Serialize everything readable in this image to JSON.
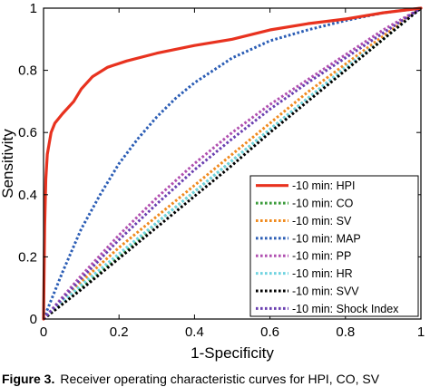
{
  "chart_data": {
    "type": "line",
    "title": "",
    "xlabel": "1-Specificity",
    "ylabel": "Sensitivity",
    "xlim": [
      0,
      1
    ],
    "ylim": [
      0,
      1
    ],
    "x_ticks": [
      "0",
      "0.2",
      "0.4",
      "0.6",
      "0.8",
      "1"
    ],
    "y_ticks": [
      "0",
      "0.2",
      "0.4",
      "0.6",
      "0.8",
      "1"
    ],
    "grid": false,
    "legend_position": "bottom-right",
    "series": [
      {
        "name": "-10 min: HPI",
        "color": "#e8321f",
        "style": "solid",
        "points": [
          [
            0,
            0
          ],
          [
            0.003,
            0.3
          ],
          [
            0.006,
            0.45
          ],
          [
            0.01,
            0.53
          ],
          [
            0.02,
            0.6
          ],
          [
            0.03,
            0.63
          ],
          [
            0.05,
            0.66
          ],
          [
            0.08,
            0.7
          ],
          [
            0.1,
            0.74
          ],
          [
            0.13,
            0.78
          ],
          [
            0.17,
            0.81
          ],
          [
            0.22,
            0.83
          ],
          [
            0.3,
            0.855
          ],
          [
            0.4,
            0.88
          ],
          [
            0.5,
            0.9
          ],
          [
            0.6,
            0.93
          ],
          [
            0.7,
            0.95
          ],
          [
            0.8,
            0.965
          ],
          [
            0.9,
            0.985
          ],
          [
            1,
            1
          ]
        ]
      },
      {
        "name": "-10 min: CO",
        "color": "#3a9b3a",
        "style": "dotted",
        "points": [
          [
            0,
            0
          ],
          [
            0.1,
            0.1
          ],
          [
            0.2,
            0.2
          ],
          [
            0.3,
            0.31
          ],
          [
            0.4,
            0.41
          ],
          [
            0.5,
            0.51
          ],
          [
            0.6,
            0.61
          ],
          [
            0.7,
            0.71
          ],
          [
            0.8,
            0.8
          ],
          [
            0.9,
            0.9
          ],
          [
            1,
            1
          ]
        ]
      },
      {
        "name": "-10 min: SV",
        "color": "#f08a1e",
        "style": "dotted",
        "points": [
          [
            0,
            0
          ],
          [
            0.05,
            0.06
          ],
          [
            0.1,
            0.12
          ],
          [
            0.2,
            0.23
          ],
          [
            0.3,
            0.33
          ],
          [
            0.4,
            0.43
          ],
          [
            0.5,
            0.53
          ],
          [
            0.6,
            0.63
          ],
          [
            0.7,
            0.73
          ],
          [
            0.8,
            0.82
          ],
          [
            0.9,
            0.91
          ],
          [
            1,
            1
          ]
        ]
      },
      {
        "name": "-10 min: MAP",
        "color": "#2b5db5",
        "style": "dotted",
        "points": [
          [
            0,
            0
          ],
          [
            0.02,
            0.06
          ],
          [
            0.05,
            0.15
          ],
          [
            0.1,
            0.29
          ],
          [
            0.15,
            0.4
          ],
          [
            0.2,
            0.5
          ],
          [
            0.25,
            0.58
          ],
          [
            0.3,
            0.65
          ],
          [
            0.35,
            0.71
          ],
          [
            0.4,
            0.76
          ],
          [
            0.45,
            0.8
          ],
          [
            0.5,
            0.84
          ],
          [
            0.6,
            0.895
          ],
          [
            0.7,
            0.93
          ],
          [
            0.8,
            0.96
          ],
          [
            0.9,
            0.985
          ],
          [
            1,
            1
          ]
        ]
      },
      {
        "name": "-10 min: PP",
        "color": "#b04fb0",
        "style": "dotted",
        "points": [
          [
            0,
            0
          ],
          [
            0.05,
            0.07
          ],
          [
            0.1,
            0.14
          ],
          [
            0.2,
            0.27
          ],
          [
            0.3,
            0.39
          ],
          [
            0.4,
            0.5
          ],
          [
            0.5,
            0.6
          ],
          [
            0.6,
            0.69
          ],
          [
            0.7,
            0.77
          ],
          [
            0.8,
            0.85
          ],
          [
            0.9,
            0.93
          ],
          [
            1,
            1
          ]
        ]
      },
      {
        "name": "-10 min: HR",
        "color": "#6fd3e0",
        "style": "dotted",
        "points": [
          [
            0,
            0
          ],
          [
            0.1,
            0.11
          ],
          [
            0.2,
            0.21
          ],
          [
            0.3,
            0.31
          ],
          [
            0.4,
            0.41
          ],
          [
            0.5,
            0.51
          ],
          [
            0.6,
            0.61
          ],
          [
            0.7,
            0.71
          ],
          [
            0.8,
            0.81
          ],
          [
            0.9,
            0.9
          ],
          [
            1,
            1
          ]
        ]
      },
      {
        "name": "-10 min: SVV",
        "color": "#000000",
        "style": "dotted",
        "points": [
          [
            0,
            0
          ],
          [
            0.1,
            0.095
          ],
          [
            0.2,
            0.195
          ],
          [
            0.3,
            0.295
          ],
          [
            0.4,
            0.395
          ],
          [
            0.5,
            0.495
          ],
          [
            0.6,
            0.6
          ],
          [
            0.7,
            0.7
          ],
          [
            0.8,
            0.8
          ],
          [
            0.9,
            0.9
          ],
          [
            1,
            1
          ]
        ]
      },
      {
        "name": "-10 min: Shock Index",
        "color": "#6a3fb0",
        "style": "dotted",
        "points": [
          [
            0,
            0
          ],
          [
            0.05,
            0.065
          ],
          [
            0.1,
            0.13
          ],
          [
            0.2,
            0.255
          ],
          [
            0.3,
            0.37
          ],
          [
            0.4,
            0.48
          ],
          [
            0.5,
            0.58
          ],
          [
            0.6,
            0.675
          ],
          [
            0.7,
            0.76
          ],
          [
            0.8,
            0.84
          ],
          [
            0.9,
            0.92
          ],
          [
            1,
            1
          ]
        ]
      }
    ]
  },
  "caption": {
    "label": "Figure 3.",
    "text": "Receiver operating characteristic curves for HPI, CO, SV"
  }
}
